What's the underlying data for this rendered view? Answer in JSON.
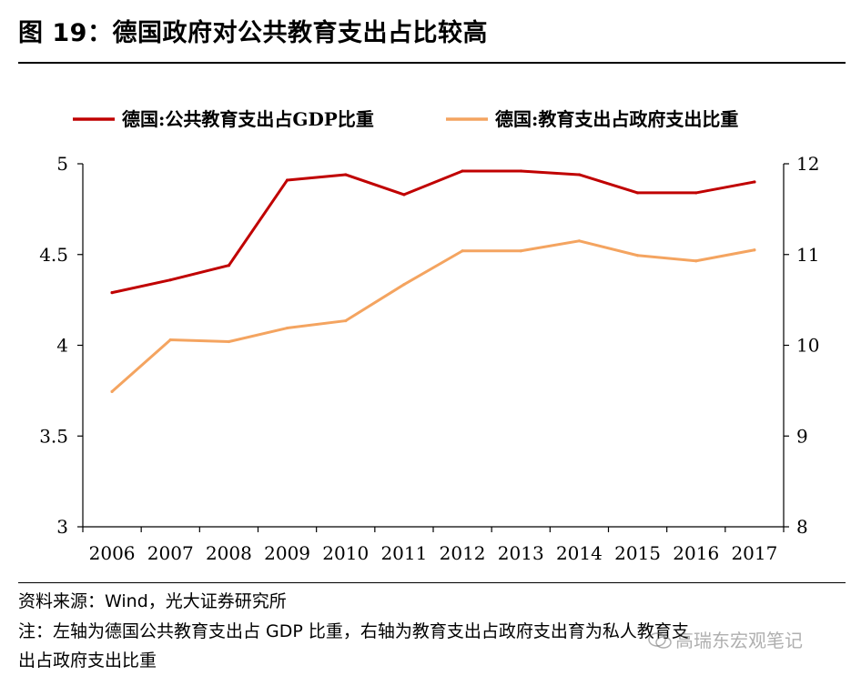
{
  "figure": {
    "title": "图 19：德国政府对公共教育支出占比较高",
    "source": "资料来源：Wind，光大证券研究所",
    "note_line1": "注：左轴为德国公共教育支出占 GDP 比重，右轴为教育支出占政府支出育为私人教育支",
    "note_line2": "出占政府支出比重",
    "watermark": "高瑞东宏观笔记"
  },
  "chart_data": {
    "type": "line",
    "categories": [
      "2006",
      "2007",
      "2008",
      "2009",
      "2010",
      "2011",
      "2012",
      "2013",
      "2014",
      "2015",
      "2016",
      "2017"
    ],
    "series": [
      {
        "name": "德国:公共教育支出占GDP比重",
        "axis": "left",
        "color": "#C00000",
        "values": [
          4.29,
          4.36,
          4.44,
          4.91,
          4.94,
          4.83,
          4.96,
          4.96,
          4.94,
          4.84,
          4.84,
          4.9
        ]
      },
      {
        "name": "德国:教育支出占政府支出比重",
        "axis": "right",
        "color": "#F4A460",
        "values": [
          9.49,
          10.06,
          10.04,
          10.19,
          10.27,
          10.67,
          11.04,
          11.04,
          11.15,
          10.99,
          10.93,
          11.05
        ]
      }
    ],
    "left_axis": {
      "ylim": [
        3,
        5
      ],
      "ticks": [
        "3",
        "3.5",
        "4",
        "4.5",
        "5"
      ]
    },
    "right_axis": {
      "ylim": [
        8,
        12
      ],
      "ticks": [
        "8",
        "9",
        "10",
        "11",
        "12"
      ]
    },
    "legend_position": "top",
    "grid": false
  }
}
